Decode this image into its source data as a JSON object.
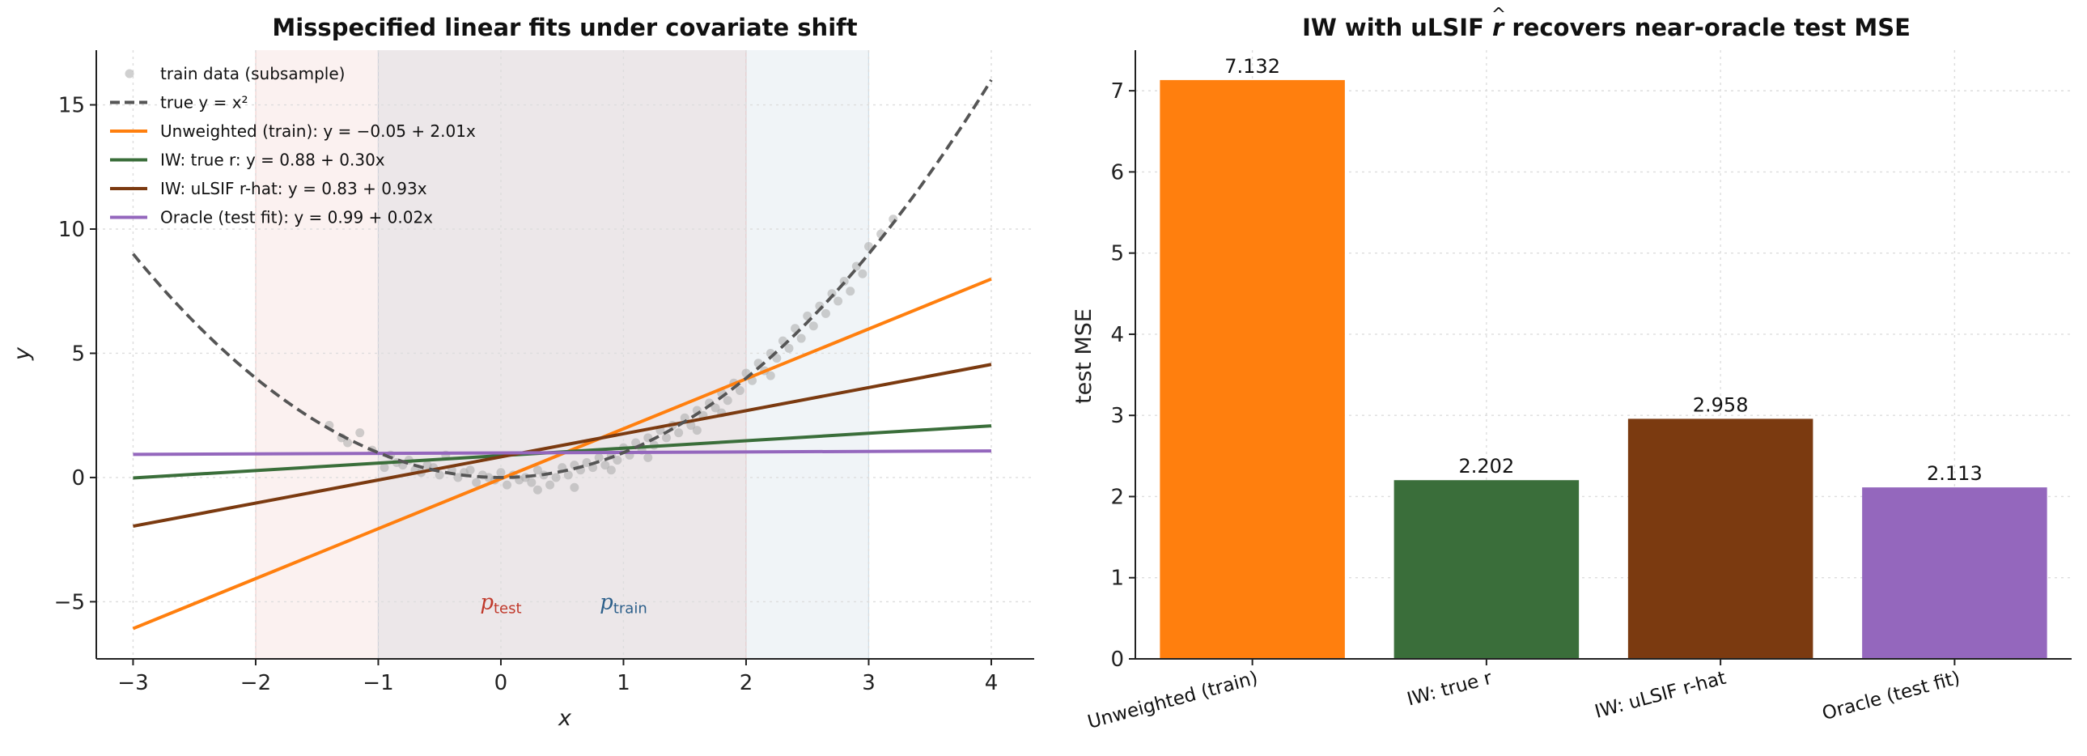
{
  "chart_data": [
    {
      "type": "line",
      "title": "Misspecified linear fits under covariate shift",
      "xlabel": "x",
      "ylabel": "y",
      "xlim": [
        -3.3,
        4.35
      ],
      "ylim": [
        -7.3,
        17.2
      ],
      "xticks": [
        -3,
        -2,
        -1,
        0,
        1,
        2,
        3,
        4
      ],
      "yticks": [
        -5,
        0,
        5,
        10,
        15
      ],
      "grid": true,
      "legend_position": "upper-left",
      "regions": [
        {
          "name": "p_test",
          "label_base": "p",
          "label_sub": "test",
          "x_range": [
            -2,
            2
          ],
          "color": "#c0392b",
          "label_x": 0.0,
          "label_y": -5.3
        },
        {
          "name": "p_train",
          "label_base": "p",
          "label_sub": "train",
          "x_range": [
            -1,
            3
          ],
          "color": "#2c5f8a",
          "label_x": 1.0,
          "label_y": -5.3
        }
      ],
      "true_function": {
        "name": "true y = x²",
        "legend": "true y = x²",
        "color": "#555555",
        "x_range": [
          -3,
          4
        ]
      },
      "series": [
        {
          "name": "Unweighted (train)",
          "legend": "Unweighted (train):  y = −0.05 + 2.01x",
          "intercept": -0.05,
          "slope": 2.01,
          "color": "#ff7f0e"
        },
        {
          "name": "IW: true r",
          "legend": "IW: true r:  y = 0.88 + 0.30x",
          "intercept": 0.88,
          "slope": 0.3,
          "color": "#3a6e3a"
        },
        {
          "name": "IW: uLSIF r-hat",
          "legend": "IW: uLSIF r-hat:  y = 0.83 + 0.93x",
          "intercept": 0.83,
          "slope": 0.93,
          "color": "#7b3a10"
        },
        {
          "name": "Oracle (test fit)",
          "legend": "Oracle (test fit):  y = 0.99 + 0.02x",
          "intercept": 0.99,
          "slope": 0.02,
          "color": "#9467bd"
        }
      ],
      "scatter": {
        "name": "train data (subsample)",
        "legend": "train data (subsample)",
        "color": "#aaaaaa",
        "points": [
          [
            -1.4,
            2.1
          ],
          [
            -1.3,
            1.6
          ],
          [
            -1.25,
            1.4
          ],
          [
            -1.15,
            1.8
          ],
          [
            -1.05,
            1.1
          ],
          [
            -0.95,
            0.4
          ],
          [
            -0.9,
            0.9
          ],
          [
            -0.85,
            0.6
          ],
          [
            -0.8,
            0.5
          ],
          [
            -0.75,
            0.7
          ],
          [
            -0.7,
            0.3
          ],
          [
            -0.65,
            0.2
          ],
          [
            -0.6,
            0.5
          ],
          [
            -0.55,
            0.4
          ],
          [
            -0.5,
            0.1
          ],
          [
            -0.45,
            0.9
          ],
          [
            -0.4,
            0.3
          ],
          [
            -0.35,
            0.0
          ],
          [
            -0.3,
            0.2
          ],
          [
            -0.25,
            0.3
          ],
          [
            -0.2,
            -0.2
          ],
          [
            -0.15,
            0.1
          ],
          [
            -0.1,
            0.0
          ],
          [
            -0.05,
            -0.1
          ],
          [
            0.0,
            0.2
          ],
          [
            0.05,
            -0.3
          ],
          [
            0.1,
            0.1
          ],
          [
            0.15,
            -0.1
          ],
          [
            0.2,
            0.0
          ],
          [
            0.25,
            -0.2
          ],
          [
            0.3,
            0.3
          ],
          [
            0.35,
            0.1
          ],
          [
            0.4,
            -0.3
          ],
          [
            0.45,
            0.0
          ],
          [
            0.5,
            0.4
          ],
          [
            0.55,
            0.1
          ],
          [
            0.6,
            0.5
          ],
          [
            0.65,
            0.3
          ],
          [
            0.7,
            0.6
          ],
          [
            0.75,
            0.4
          ],
          [
            0.8,
            0.8
          ],
          [
            0.85,
            0.5
          ],
          [
            0.9,
            0.9
          ],
          [
            0.95,
            0.7
          ],
          [
            1.0,
            1.2
          ],
          [
            1.05,
            0.9
          ],
          [
            1.1,
            1.4
          ],
          [
            1.15,
            1.1
          ],
          [
            1.2,
            1.6
          ],
          [
            1.25,
            1.3
          ],
          [
            1.3,
            1.9
          ],
          [
            1.35,
            1.6
          ],
          [
            1.4,
            2.1
          ],
          [
            1.45,
            1.8
          ],
          [
            1.5,
            2.4
          ],
          [
            1.55,
            2.1
          ],
          [
            1.6,
            2.7
          ],
          [
            1.65,
            2.5
          ],
          [
            1.7,
            3.0
          ],
          [
            1.75,
            2.8
          ],
          [
            1.8,
            3.4
          ],
          [
            1.85,
            3.1
          ],
          [
            1.9,
            3.8
          ],
          [
            1.95,
            3.5
          ],
          [
            2.0,
            4.2
          ],
          [
            2.05,
            3.9
          ],
          [
            2.1,
            4.6
          ],
          [
            2.15,
            4.3
          ],
          [
            2.2,
            5.0
          ],
          [
            2.25,
            4.8
          ],
          [
            2.3,
            5.5
          ],
          [
            2.35,
            5.2
          ],
          [
            2.4,
            6.0
          ],
          [
            2.45,
            5.6
          ],
          [
            2.5,
            6.5
          ],
          [
            2.55,
            6.1
          ],
          [
            2.6,
            6.9
          ],
          [
            2.65,
            6.6
          ],
          [
            2.7,
            7.4
          ],
          [
            2.75,
            7.1
          ],
          [
            2.8,
            7.9
          ],
          [
            2.85,
            7.5
          ],
          [
            2.9,
            8.5
          ],
          [
            2.95,
            8.2
          ],
          [
            3.0,
            9.3
          ],
          [
            3.1,
            9.8
          ],
          [
            3.2,
            10.4
          ],
          [
            0.6,
            -0.4
          ],
          [
            0.9,
            0.3
          ],
          [
            1.2,
            0.8
          ],
          [
            0.3,
            -0.5
          ],
          [
            1.6,
            1.9
          ],
          [
            1.8,
            2.6
          ],
          [
            2.2,
            4.1
          ]
        ]
      }
    },
    {
      "type": "bar",
      "title": "IW with uLSIF r̂ recovers near-oracle test MSE",
      "title_parts": [
        "IW with uLSIF ",
        "r",
        " recovers near-oracle test MSE"
      ],
      "xlabel": "",
      "ylabel": "test MSE",
      "ylim": [
        0,
        7.5
      ],
      "yticks": [
        0,
        1,
        2,
        3,
        4,
        5,
        6,
        7
      ],
      "grid": true,
      "categories": [
        "Unweighted (train)",
        "IW: true r",
        "IW: uLSIF r-hat",
        "Oracle (test fit)"
      ],
      "values": [
        7.132,
        2.202,
        2.958,
        2.113
      ],
      "value_labels": [
        "7.132",
        "2.202",
        "2.958",
        "2.113"
      ],
      "colors": [
        "#ff7f0e",
        "#3a6e3a",
        "#7b3a10",
        "#9467bd"
      ]
    }
  ]
}
